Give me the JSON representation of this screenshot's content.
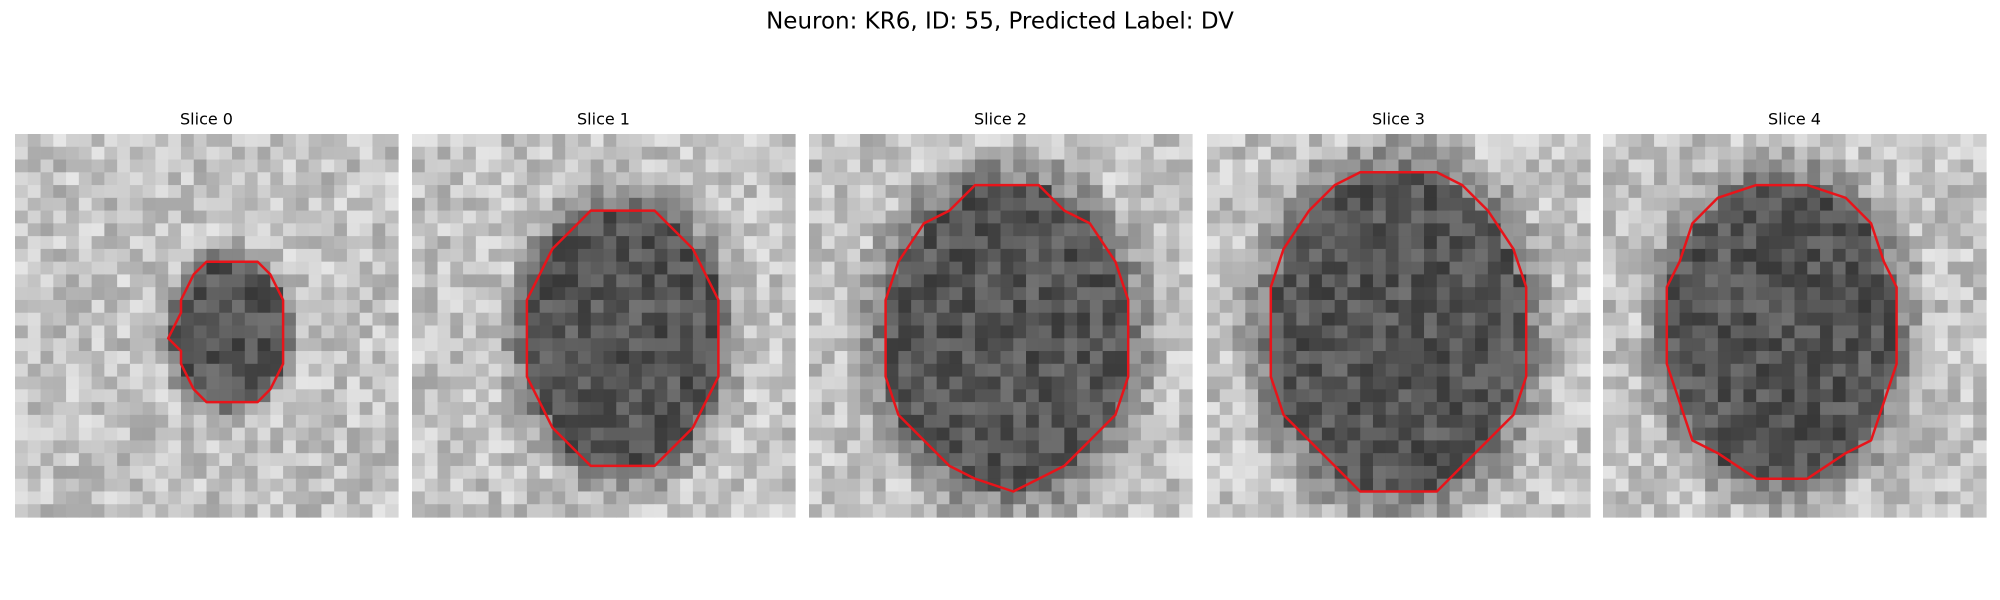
{
  "title": "Neuron: KR6, ID: 55, Predicted Label: DV",
  "panels": [
    {
      "title": "Slice 0"
    },
    {
      "title": "Slice 1"
    },
    {
      "title": "Slice 2"
    },
    {
      "title": "Slice 3"
    },
    {
      "title": "Slice 4"
    }
  ]
}
